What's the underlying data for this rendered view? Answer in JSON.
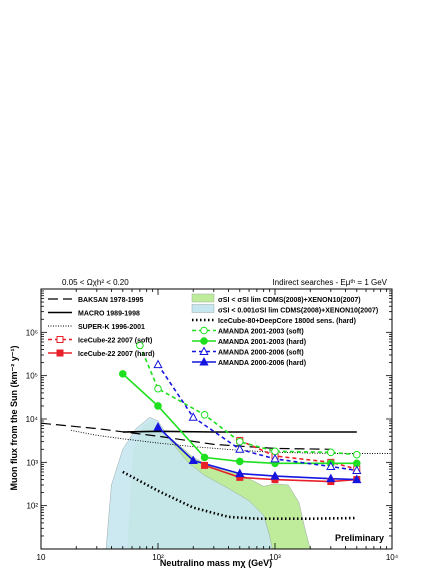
{
  "chart_data": {
    "type": "line",
    "xscale": "log",
    "yscale": "log",
    "xlim": [
      10,
      10000
    ],
    "ylim": [
      10,
      10000000
    ],
    "xlabel": "Neutralino mass mχ (GeV)",
    "ylabel": "Muon flux from the Sun (km⁻² y⁻¹)",
    "x_tick_labels": [
      "10",
      "10²",
      "10³",
      "10⁴"
    ],
    "y_tick_labels": [
      "10²",
      "10³",
      "10⁴",
      "10⁵",
      "10⁶"
    ],
    "annotations": {
      "top_left": "0.05 < Ωχh² < 0.20",
      "top_right": "Indirect searches - Eμᵗʰ = 1 GeV",
      "corner": "Preliminary"
    },
    "legend_left": [
      {
        "label": "BAKSAN 1978-1995",
        "style": "longdash",
        "color": "#000000"
      },
      {
        "label": "MACRO 1989-1998",
        "style": "solid",
        "color": "#000000"
      },
      {
        "label": "SUPER-K 1996-2001",
        "style": "dotted",
        "color": "#000000"
      },
      {
        "label": "IceCube-22 2007 (soft)",
        "style": "dashed-square-open",
        "color": "#e8202a"
      },
      {
        "label": "IceCube-22 2007 (hard)",
        "style": "solid-square-filled",
        "color": "#e8202a"
      }
    ],
    "legend_right": [
      {
        "label": "σSI < σSI lim  CDMS(2008)+XENON10(2007)",
        "style": "fill",
        "color": "#bfec9b"
      },
      {
        "label": "σSI < 0.001σSI lim  CDMS(2008)+XENON10(2007)",
        "style": "fill",
        "color": "#c6e7ef"
      },
      {
        "label": "IceCube-80+DeepCore 1800d sens. (hard)",
        "style": "thickdotted",
        "color": "#000000"
      },
      {
        "label": "AMANDA 2001-2003 (soft)",
        "style": "dashed-circle-open",
        "color": "#1ee01e"
      },
      {
        "label": "AMANDA 2001-2003 (hard)",
        "style": "solid-circle-filled",
        "color": "#1ee01e"
      },
      {
        "label": "AMANDA 2000-2006 (soft)",
        "style": "dashed-triangle-open",
        "color": "#1515e0"
      },
      {
        "label": "AMANDA 2000-2006 (hard)",
        "style": "solid-triangle-filled",
        "color": "#1515e0"
      }
    ],
    "regions": [
      {
        "name": "σSI < σSI lim  CDMS(2008)+XENON10(2007)",
        "color": "#bfec9b",
        "upper": [
          [
            55,
            10
          ],
          [
            62,
            2000
          ],
          [
            75,
            7000
          ],
          [
            90,
            9000
          ],
          [
            100,
            6500
          ],
          [
            130,
            3500
          ],
          [
            160,
            2200
          ],
          [
            200,
            1300
          ],
          [
            300,
            750
          ],
          [
            450,
            600
          ],
          [
            600,
            420
          ],
          [
            800,
            280
          ],
          [
            1000,
            320
          ],
          [
            1300,
            300
          ],
          [
            1600,
            120
          ],
          [
            1800,
            30
          ],
          [
            2000,
            10
          ]
        ],
        "lower": [
          [
            2000,
            10
          ],
          [
            55,
            10
          ]
        ]
      },
      {
        "name": "σSI < 0.001σSI lim  CDMS(2008)+XENON10(2007)",
        "color": "#c6e7ef",
        "upper": [
          [
            36,
            10
          ],
          [
            40,
            300
          ],
          [
            50,
            2000
          ],
          [
            65,
            6000
          ],
          [
            85,
            11000
          ],
          [
            100,
            9000
          ],
          [
            130,
            3000
          ],
          [
            180,
            1000
          ],
          [
            250,
            500
          ],
          [
            400,
            250
          ],
          [
            600,
            130
          ],
          [
            800,
            60
          ],
          [
            900,
            20
          ],
          [
            950,
            10
          ]
        ],
        "lower": [
          [
            950,
            10
          ],
          [
            36,
            10
          ]
        ]
      }
    ],
    "series": [
      {
        "name": "BAKSAN 1978-1995",
        "style": "longdash",
        "color": "#000000",
        "x": [
          10,
          30,
          100,
          300,
          1000,
          3000
        ],
        "y": [
          8000,
          6000,
          4000,
          2600,
          2100,
          2000
        ]
      },
      {
        "name": "MACRO 1989-1998",
        "style": "solid",
        "color": "#000000",
        "x": [
          50,
          100,
          300,
          1000,
          3000,
          5000
        ],
        "y": [
          5000,
          5200,
          5000,
          5000,
          5000,
          5000
        ]
      },
      {
        "name": "SUPER-K 1996-2001",
        "style": "dotted",
        "color": "#000000",
        "x": [
          18,
          30,
          50,
          100,
          200,
          500,
          1000,
          3000,
          10000
        ],
        "y": [
          5500,
          4200,
          3500,
          2800,
          2300,
          1900,
          1700,
          1600,
          1600
        ]
      },
      {
        "name": "IceCube-22 2007 (soft)",
        "style": "dashed",
        "marker": "square-open",
        "color": "#e8202a",
        "x": [
          500,
          1000,
          3000,
          5000
        ],
        "y": [
          3200,
          1400,
          1000,
          700
        ]
      },
      {
        "name": "IceCube-22 2007 (hard)",
        "style": "solid",
        "marker": "square-filled",
        "color": "#e8202a",
        "x": [
          250,
          500,
          1000,
          3000,
          5000
        ],
        "y": [
          850,
          450,
          400,
          360,
          400
        ]
      },
      {
        "name": "IceCube-80+DeepCore 1800d sens. (hard)",
        "style": "thickdotted",
        "color": "#000000",
        "x": [
          50,
          100,
          200,
          400,
          700,
          1000,
          2000,
          5000
        ],
        "y": [
          600,
          220,
          90,
          55,
          50,
          50,
          50,
          52
        ]
      },
      {
        "name": "AMANDA 2001-2003 (soft)",
        "style": "dashed",
        "marker": "circle-open",
        "color": "#1ee01e",
        "x": [
          70,
          100,
          250,
          500,
          1000,
          3000,
          5000
        ],
        "y": [
          500000,
          50000,
          12500,
          3000,
          1800,
          1700,
          1500
        ]
      },
      {
        "name": "AMANDA 2001-2003 (hard)",
        "style": "solid",
        "marker": "circle-filled",
        "color": "#1ee01e",
        "x": [
          50,
          100,
          250,
          500,
          1000,
          3000,
          5000
        ],
        "y": [
          110000,
          20000,
          1300,
          1050,
          950,
          950,
          950
        ]
      },
      {
        "name": "AMANDA 2000-2006 (soft)",
        "style": "dashed",
        "marker": "triangle-open",
        "color": "#1515e0",
        "x": [
          100,
          200,
          500,
          1000,
          3000,
          5000
        ],
        "y": [
          180000,
          11000,
          2000,
          1200,
          800,
          650
        ]
      },
      {
        "name": "AMANDA 2000-2006 (hard)",
        "style": "solid",
        "marker": "triangle-filled",
        "color": "#1515e0",
        "x": [
          100,
          200,
          500,
          1000,
          3000,
          5000
        ],
        "y": [
          6500,
          1100,
          550,
          480,
          420,
          400
        ]
      }
    ]
  }
}
